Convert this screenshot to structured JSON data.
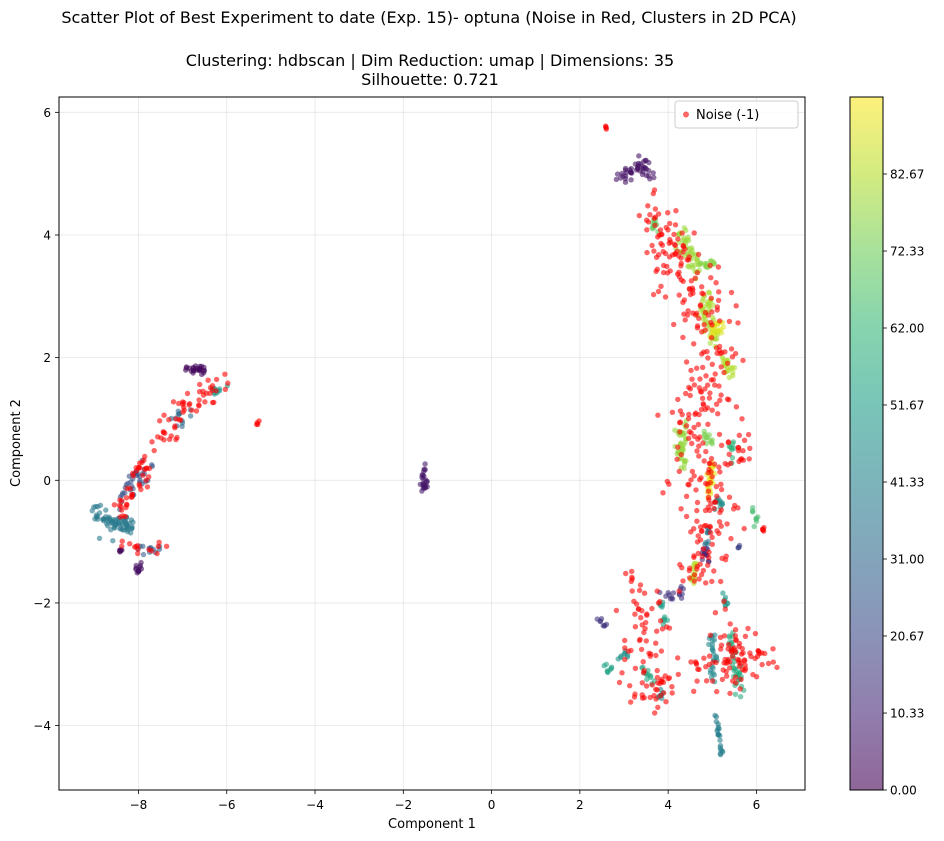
{
  "chart_data": {
    "type": "scatter",
    "title": "Scatter Plot of Best Experiment to date (Exp. 15)- optuna (Noise in Red, Clusters in 2D PCA)",
    "subtitle_line1": "Clustering: hdbscan | Dim Reduction: umap | Dimensions: 35",
    "subtitle_line2": "Silhouette: 0.721",
    "xlabel": "Component 1",
    "ylabel": "Component 2",
    "xlim": [
      -9.8,
      7.1
    ],
    "ylim": [
      -5.05,
      6.25
    ],
    "xticks": [
      -8,
      -6,
      -4,
      -2,
      0,
      2,
      4,
      6
    ],
    "xtick_labels": [
      "−8",
      "−6",
      "−4",
      "−2",
      "0",
      "2",
      "4",
      "6"
    ],
    "yticks": [
      -4,
      -2,
      0,
      2,
      4,
      6
    ],
    "ytick_labels": [
      "−4",
      "−2",
      "0",
      "2",
      "4",
      "6"
    ],
    "grid": true,
    "legend": {
      "placement": "top-right",
      "entries": [
        {
          "label": "Noise (-1)",
          "color": "#ff0000"
        }
      ]
    },
    "colorbar": {
      "colormap": "viridis",
      "range": [
        0,
        93
      ],
      "ticks": [
        0.0,
        10.33,
        20.67,
        31.0,
        41.33,
        51.67,
        62.0,
        72.33,
        82.67
      ],
      "tick_labels": [
        "0.00",
        "10.33",
        "20.67",
        "31.00",
        "41.33",
        "51.67",
        "62.00",
        "72.33",
        "82.67"
      ]
    },
    "noise_color": "#ff0000",
    "point_alpha": 0.6,
    "noise_segments": [
      {
        "path": [
          [
            -8.6,
            -0.7
          ],
          [
            -8.2,
            -0.2
          ],
          [
            -7.7,
            0.3
          ],
          [
            -7.3,
            0.9
          ],
          [
            -6.9,
            1.25
          ],
          [
            -6.5,
            1.4
          ],
          [
            -6.1,
            1.6
          ]
        ],
        "spread": 0.13,
        "count": 95
      },
      {
        "path": [
          [
            -8.4,
            -1.05
          ],
          [
            -7.8,
            -1.15
          ],
          [
            -7.3,
            -1.05
          ]
        ],
        "spread": 0.05,
        "count": 14
      },
      {
        "path": [
          [
            -5.3,
            0.95
          ]
        ],
        "spread": 0.02,
        "count": 4
      },
      {
        "path": [
          [
            2.6,
            5.75
          ]
        ],
        "spread": 0.02,
        "count": 4
      },
      {
        "path": [
          [
            3.7,
            4.3
          ],
          [
            4.1,
            4.0
          ],
          [
            4.2,
            3.6
          ],
          [
            4.4,
            3.2
          ],
          [
            4.9,
            2.6
          ],
          [
            5.1,
            2.2
          ],
          [
            4.9,
            1.6
          ],
          [
            4.7,
            1.2
          ],
          [
            4.5,
            0.8
          ],
          [
            4.8,
            0.3
          ],
          [
            5.1,
            -0.2
          ],
          [
            5.0,
            -0.8
          ],
          [
            4.9,
            -1.3
          ],
          [
            4.7,
            -1.7
          ]
        ],
        "spread": 0.3,
        "count": 330
      },
      {
        "path": [
          [
            3.2,
            -1.95
          ],
          [
            3.5,
            -2.3
          ],
          [
            3.7,
            -2.8
          ],
          [
            3.8,
            -3.4
          ]
        ],
        "spread": 0.3,
        "count": 70
      },
      {
        "path": [
          [
            2.9,
            -3.35
          ],
          [
            3.4,
            -3.5
          ],
          [
            4.0,
            -3.4
          ]
        ],
        "spread": 0.12,
        "count": 20
      },
      {
        "path": [
          [
            5.3,
            -2.4
          ],
          [
            5.5,
            -2.8
          ],
          [
            5.9,
            -2.9
          ],
          [
            6.2,
            -3.0
          ]
        ],
        "spread": 0.18,
        "count": 60
      },
      {
        "path": [
          [
            4.6,
            -3.0
          ],
          [
            5.1,
            -3.1
          ],
          [
            5.6,
            -3.2
          ]
        ],
        "spread": 0.12,
        "count": 30
      },
      {
        "path": [
          [
            5.7,
            0.8
          ],
          [
            5.8,
            0.2
          ]
        ],
        "spread": 0.1,
        "count": 14
      },
      {
        "path": [
          [
            6.15,
            -0.8
          ]
        ],
        "spread": 0.04,
        "count": 5
      }
    ],
    "cluster_segments": [
      {
        "value": 2,
        "path": [
          [
            -6.9,
            1.78
          ],
          [
            -6.5,
            1.82
          ]
        ],
        "spread": 0.05,
        "count": 25
      },
      {
        "value": 4,
        "path": [
          [
            -8.0,
            -1.4
          ],
          [
            -8.0,
            -1.5
          ]
        ],
        "spread": 0.04,
        "count": 12
      },
      {
        "value": 3,
        "path": [
          [
            -8.4,
            -1.15
          ]
        ],
        "spread": 0.03,
        "count": 6
      },
      {
        "value": 28,
        "path": [
          [
            -8.0,
            -1.15
          ],
          [
            -7.5,
            -1.1
          ]
        ],
        "spread": 0.05,
        "count": 12
      },
      {
        "value": 38,
        "path": [
          [
            -9.0,
            -0.55
          ],
          [
            -8.6,
            -0.65
          ],
          [
            -8.2,
            -0.75
          ]
        ],
        "spread": 0.08,
        "count": 70
      },
      {
        "value": 24,
        "path": [
          [
            -8.4,
            -0.3
          ],
          [
            -8.1,
            0.05
          ],
          [
            -7.8,
            0.15
          ]
        ],
        "spread": 0.1,
        "count": 35
      },
      {
        "value": 32,
        "path": [
          [
            -7.2,
            0.9
          ],
          [
            -6.9,
            1.1
          ]
        ],
        "spread": 0.06,
        "count": 12
      },
      {
        "value": 50,
        "path": [
          [
            -6.4,
            1.5
          ],
          [
            -6.1,
            1.45
          ]
        ],
        "spread": 0.05,
        "count": 10
      },
      {
        "value": 6,
        "path": [
          [
            -1.55,
            0.25
          ],
          [
            -1.5,
            0.0
          ],
          [
            -1.55,
            -0.15
          ]
        ],
        "spread": 0.04,
        "count": 25
      },
      {
        "value": 5,
        "path": [
          [
            2.9,
            4.92
          ],
          [
            3.2,
            5.0
          ],
          [
            3.45,
            5.15
          ],
          [
            3.6,
            4.95
          ]
        ],
        "spread": 0.06,
        "count": 45
      },
      {
        "value": 70,
        "path": [
          [
            3.6,
            4.2
          ],
          [
            3.75,
            4.1
          ]
        ],
        "spread": 0.05,
        "count": 10
      },
      {
        "value": 79,
        "path": [
          [
            4.25,
            4.05
          ],
          [
            4.5,
            3.7
          ],
          [
            4.7,
            3.35
          ]
        ],
        "spread": 0.07,
        "count": 45
      },
      {
        "value": 76,
        "path": [
          [
            4.6,
            3.5
          ],
          [
            5.05,
            3.55
          ]
        ],
        "spread": 0.04,
        "count": 15
      },
      {
        "value": 81,
        "path": [
          [
            4.85,
            3.0
          ],
          [
            4.9,
            2.6
          ],
          [
            5.1,
            2.3
          ]
        ],
        "spread": 0.08,
        "count": 50
      },
      {
        "value": 89,
        "path": [
          [
            4.95,
            2.4
          ],
          [
            5.2,
            2.5
          ]
        ],
        "spread": 0.06,
        "count": 20
      },
      {
        "value": 82,
        "path": [
          [
            5.3,
            2.0
          ],
          [
            5.4,
            1.7
          ]
        ],
        "spread": 0.05,
        "count": 20
      },
      {
        "value": 78,
        "path": [
          [
            4.3,
            0.85
          ],
          [
            4.3,
            0.5
          ],
          [
            4.4,
            0.1
          ]
        ],
        "spread": 0.07,
        "count": 40
      },
      {
        "value": 74,
        "path": [
          [
            4.8,
            0.75
          ],
          [
            5.0,
            0.6
          ]
        ],
        "spread": 0.05,
        "count": 12
      },
      {
        "value": 90,
        "path": [
          [
            5.0,
            0.3
          ],
          [
            4.95,
            0.0
          ],
          [
            4.9,
            -0.3
          ]
        ],
        "spread": 0.05,
        "count": 30
      },
      {
        "value": 46,
        "path": [
          [
            5.1,
            -0.3
          ],
          [
            5.2,
            -0.45
          ]
        ],
        "spread": 0.05,
        "count": 12
      },
      {
        "value": 60,
        "path": [
          [
            5.45,
            0.6
          ],
          [
            5.5,
            0.3
          ]
        ],
        "spread": 0.05,
        "count": 10
      },
      {
        "value": 65,
        "path": [
          [
            5.9,
            -0.4
          ],
          [
            6.0,
            -0.7
          ]
        ],
        "spread": 0.03,
        "count": 8
      },
      {
        "value": 37,
        "path": [
          [
            4.9,
            -0.8
          ],
          [
            4.85,
            -1.1
          ]
        ],
        "spread": 0.04,
        "count": 10
      },
      {
        "value": 9,
        "path": [
          [
            4.75,
            -1.1
          ],
          [
            4.9,
            -1.3
          ]
        ],
        "spread": 0.04,
        "count": 12
      },
      {
        "value": 83,
        "path": [
          [
            4.6,
            -1.3
          ],
          [
            4.55,
            -1.7
          ]
        ],
        "spread": 0.04,
        "count": 15
      },
      {
        "value": 14,
        "path": [
          [
            3.8,
            -1.8
          ],
          [
            4.1,
            -1.95
          ],
          [
            4.35,
            -1.75
          ]
        ],
        "spread": 0.04,
        "count": 15
      },
      {
        "value": 20,
        "path": [
          [
            5.6,
            -1.1
          ]
        ],
        "spread": 0.02,
        "count": 4
      },
      {
        "value": 50,
        "path": [
          [
            5.3,
            -1.8
          ],
          [
            5.3,
            -2.1
          ]
        ],
        "spread": 0.03,
        "count": 8
      },
      {
        "value": 57,
        "path": [
          [
            5.4,
            -2.5
          ],
          [
            5.5,
            -2.9
          ],
          [
            5.6,
            -3.2
          ],
          [
            5.6,
            -3.5
          ]
        ],
        "spread": 0.06,
        "count": 40
      },
      {
        "value": 44,
        "path": [
          [
            5.0,
            -2.5
          ],
          [
            5.05,
            -2.9
          ],
          [
            5.0,
            -3.2
          ]
        ],
        "spread": 0.05,
        "count": 25
      },
      {
        "value": 40,
        "path": [
          [
            5.05,
            -3.8
          ],
          [
            5.15,
            -4.2
          ],
          [
            5.2,
            -4.5
          ]
        ],
        "spread": 0.03,
        "count": 20
      },
      {
        "value": 54,
        "path": [
          [
            3.9,
            -2.4
          ],
          [
            3.95,
            -2.2
          ]
        ],
        "spread": 0.03,
        "count": 6
      },
      {
        "value": 55,
        "path": [
          [
            3.4,
            -3.1
          ],
          [
            3.7,
            -3.3
          ]
        ],
        "spread": 0.05,
        "count": 12
      },
      {
        "value": 47,
        "path": [
          [
            2.9,
            -2.9
          ],
          [
            3.1,
            -2.85
          ]
        ],
        "spread": 0.04,
        "count": 8
      },
      {
        "value": 54,
        "path": [
          [
            2.6,
            -3.05
          ],
          [
            2.7,
            -3.1
          ]
        ],
        "spread": 0.04,
        "count": 8
      },
      {
        "value": 45,
        "path": [
          [
            3.8,
            -3.55
          ],
          [
            3.9,
            -3.45
          ]
        ],
        "spread": 0.04,
        "count": 8
      },
      {
        "value": 15,
        "path": [
          [
            2.4,
            -2.25
          ],
          [
            2.6,
            -2.35
          ]
        ],
        "spread": 0.03,
        "count": 8
      },
      {
        "value": 51,
        "path": [
          [
            3.8,
            -2.05
          ],
          [
            3.9,
            -2.0
          ]
        ],
        "spread": 0.03,
        "count": 5
      }
    ]
  }
}
